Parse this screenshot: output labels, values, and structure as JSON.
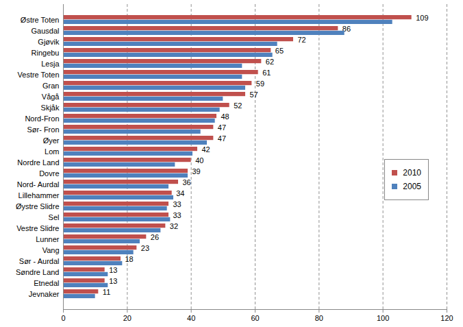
{
  "chart_data": {
    "type": "bar",
    "orientation": "horizontal",
    "categories": [
      "Østre Toten",
      "Gausdal",
      "Gjøvik",
      "Ringebu",
      "Lesja",
      "Vestre Toten",
      "Gran",
      "Vågå",
      "Skjåk",
      "Nord-Fron",
      "Sør- Fron",
      "Øyer",
      "Lom",
      "Nordre Land",
      "Dovre",
      "Nord- Aurdal",
      "Lillehammer",
      "Øystre Slidre",
      "Sel",
      "Vestre Slidre",
      "Lunner",
      "Vang",
      "Sør - Aurdal",
      "Søndre Land",
      "Etnedal",
      "Jevnaker"
    ],
    "series": [
      {
        "name": "2010",
        "color": "#c0504d",
        "data_labels": true,
        "values": [
          109,
          86,
          72,
          65,
          62,
          61,
          59,
          57,
          52,
          48,
          47,
          47,
          42,
          40,
          39,
          36,
          34,
          33,
          33,
          32,
          26,
          23,
          18,
          13,
          13,
          11
        ]
      },
      {
        "name": "2005",
        "color": "#4f81bd",
        "values": [
          103,
          88,
          67,
          65.5,
          56,
          56,
          57,
          50,
          49,
          47.5,
          43,
          45,
          40.5,
          35,
          39,
          33,
          34.5,
          32.5,
          33.5,
          30.5,
          24,
          22,
          18.5,
          14,
          14,
          10
        ]
      }
    ],
    "xlim": [
      0,
      120
    ],
    "xticks": [
      0,
      20,
      40,
      60,
      80,
      100,
      120
    ],
    "grid": true,
    "legend": "right"
  }
}
